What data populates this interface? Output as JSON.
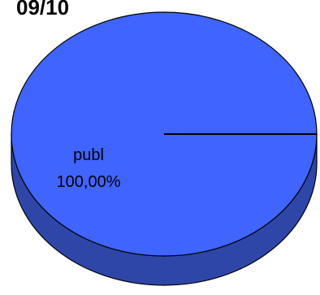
{
  "chart_data": {
    "type": "pie",
    "title": "09/10",
    "slices": [
      {
        "label": "publ",
        "value": 100,
        "percent_label": "100,00%"
      }
    ],
    "colors": {
      "top": "#3F64FF",
      "side": "#2E46A8",
      "stroke": "#000000",
      "text": "#000000"
    },
    "style": "3d"
  }
}
